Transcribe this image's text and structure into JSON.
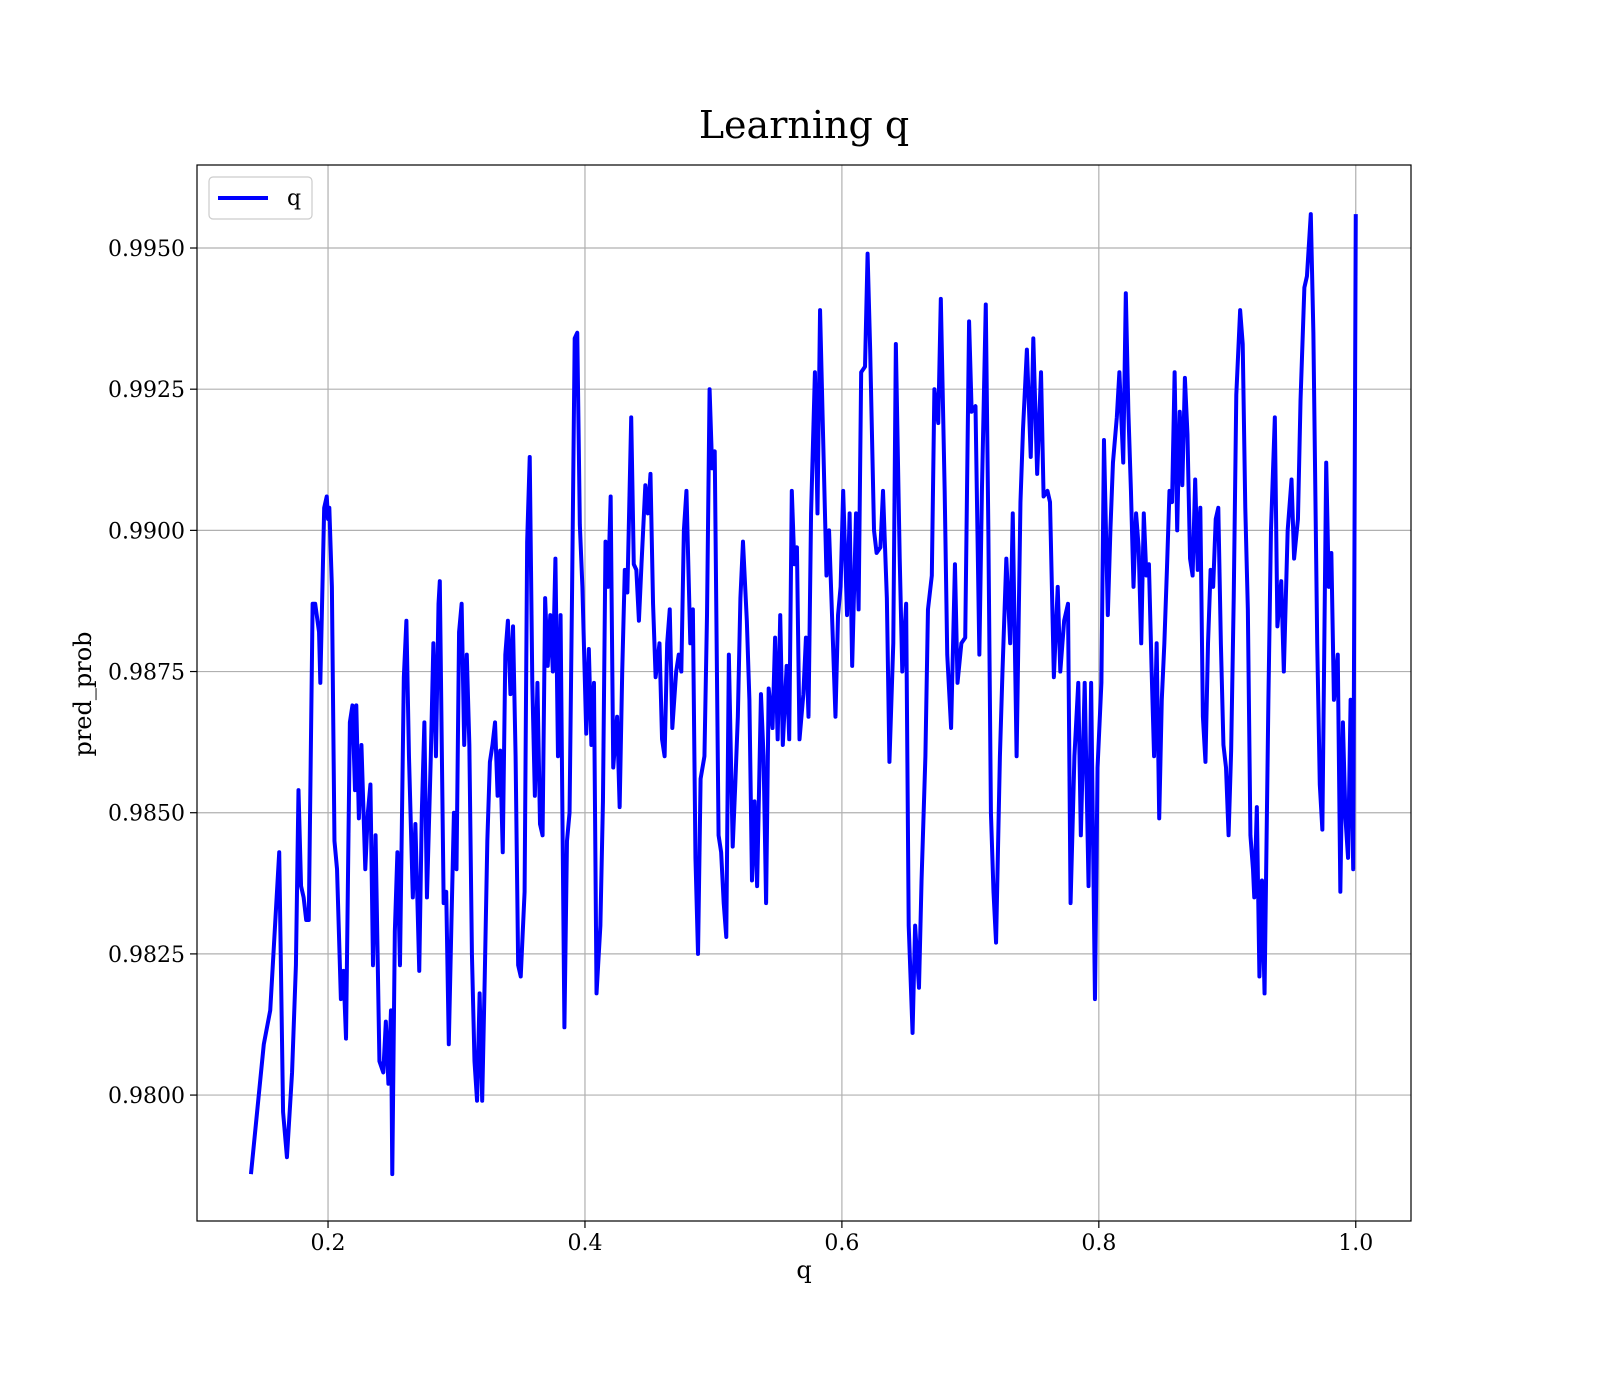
{
  "chart_data": {
    "type": "line",
    "title": "Learning q",
    "xlabel": "q",
    "ylabel": "pred_prob",
    "grid": true,
    "legend": "upper left",
    "xlim": [
      0.098,
      1.043
    ],
    "ylim": [
      0.97777,
      0.99647
    ],
    "xticks": [
      0.2,
      0.4,
      0.6,
      0.8,
      {
        "value": 1,
        "label": "1.0"
      }
    ],
    "yticks": [
      {
        "value": 0.98,
        "label": "0.9800"
      },
      0.9825,
      {
        "value": 0.985,
        "label": "0.9850"
      },
      0.9875,
      {
        "value": 0.99,
        "label": "0.9900"
      },
      0.9925,
      {
        "value": 0.995,
        "label": "0.9950"
      }
    ],
    "x": [
      0.14,
      0.15,
      0.155,
      0.16,
      0.162,
      0.165,
      0.168,
      0.172,
      0.175,
      0.177,
      0.179,
      0.181,
      0.183,
      0.185,
      0.188,
      0.19,
      0.193,
      0.194,
      0.197,
      0.199,
      0.2,
      0.201,
      0.203,
      0.205,
      0.207,
      0.21,
      0.212,
      0.214,
      0.217,
      0.219,
      0.221,
      0.222,
      0.224,
      0.226,
      0.229,
      0.231,
      0.233,
      0.235,
      0.237,
      0.24,
      0.243,
      0.245,
      0.247,
      0.249,
      0.25,
      0.252,
      0.254,
      0.256,
      0.259,
      0.261,
      0.263,
      0.266,
      0.268,
      0.271,
      0.273,
      0.275,
      0.277,
      0.28,
      0.282,
      0.284,
      0.286,
      0.287,
      0.29,
      0.292,
      0.294,
      0.296,
      0.298,
      0.3,
      0.302,
      0.304,
      0.306,
      0.308,
      0.31,
      0.312,
      0.314,
      0.316,
      0.318,
      0.32,
      0.322,
      0.324,
      0.326,
      0.328,
      0.33,
      0.332,
      0.334,
      0.336,
      0.338,
      0.34,
      0.342,
      0.344,
      0.346,
      0.348,
      0.35,
      0.353,
      0.355,
      0.357,
      0.359,
      0.361,
      0.363,
      0.365,
      0.367,
      0.369,
      0.371,
      0.373,
      0.375,
      0.377,
      0.379,
      0.381,
      0.384,
      0.386,
      0.388,
      0.39,
      0.392,
      0.394,
      0.396,
      0.398,
      0.401,
      0.403,
      0.405,
      0.407,
      0.409,
      0.412,
      0.414,
      0.416,
      0.418,
      0.42,
      0.422,
      0.425,
      0.427,
      0.429,
      0.431,
      0.433,
      0.436,
      0.438,
      0.44,
      0.442,
      0.444,
      0.447,
      0.449,
      0.451,
      0.453,
      0.455,
      0.458,
      0.46,
      0.462,
      0.464,
      0.466,
      0.468,
      0.471,
      0.473,
      0.475,
      0.477,
      0.479,
      0.482,
      0.484,
      0.486,
      0.488,
      0.49,
      0.493,
      0.495,
      0.497,
      0.499,
      0.501,
      0.504,
      0.506,
      0.508,
      0.51,
      0.512,
      0.515,
      0.517,
      0.519,
      0.521,
      0.523,
      0.526,
      0.528,
      0.53,
      0.532,
      0.534,
      0.537,
      0.539,
      0.541,
      0.543,
      0.546,
      0.548,
      0.55,
      0.552,
      0.554,
      0.557,
      0.559,
      0.561,
      0.563,
      0.565,
      0.567,
      0.57,
      0.572,
      0.574,
      0.576,
      0.579,
      0.581,
      0.583,
      0.585,
      0.588,
      0.59,
      0.592,
      0.595,
      0.597,
      0.599,
      0.601,
      0.604,
      0.606,
      0.608,
      0.611,
      0.613,
      0.615,
      0.618,
      0.62,
      0.622,
      0.625,
      0.627,
      0.63,
      0.632,
      0.635,
      0.637,
      0.64,
      0.642,
      0.645,
      0.647,
      0.65,
      0.652,
      0.655,
      0.657,
      0.66,
      0.662,
      0.665,
      0.667,
      0.67,
      0.672,
      0.675,
      0.677,
      0.68,
      0.682,
      0.685,
      0.688,
      0.69,
      0.693,
      0.696,
      0.699,
      0.701,
      0.704,
      0.707,
      0.709,
      0.712,
      0.714,
      0.716,
      0.718,
      0.72,
      0.723,
      0.725,
      0.728,
      0.731,
      0.733,
      0.736,
      0.739,
      0.741,
      0.744,
      0.747,
      0.749,
      0.752,
      0.755,
      0.757,
      0.76,
      0.762,
      0.765,
      0.768,
      0.77,
      0.773,
      0.776,
      0.778,
      0.781,
      0.784,
      0.786,
      0.789,
      0.792,
      0.794,
      0.797,
      0.799,
      0.802,
      0.804,
      0.807,
      0.809,
      0.811,
      0.814,
      0.816,
      0.819,
      0.821,
      0.823,
      0.825,
      0.827,
      0.829,
      0.831,
      0.833,
      0.835,
      0.837,
      0.839,
      0.841,
      0.843,
      0.845,
      0.847,
      0.849,
      0.851,
      0.853,
      0.855,
      0.857,
      0.859,
      0.861,
      0.863,
      0.865,
      0.867,
      0.869,
      0.871,
      0.873,
      0.875,
      0.877,
      0.879,
      0.881,
      0.883,
      0.885,
      0.887,
      0.889,
      0.891,
      0.893,
      0.895,
      0.897,
      0.899,
      0.901,
      0.903,
      0.905,
      0.907,
      0.91,
      0.912,
      0.914,
      0.916,
      0.918,
      0.92,
      0.921,
      0.923,
      0.925,
      0.927,
      0.929,
      0.932,
      0.934,
      0.937,
      0.939,
      0.942,
      0.944,
      0.947,
      0.95,
      0.952,
      0.955,
      0.957,
      0.96,
      0.962,
      0.965,
      0.967,
      0.97,
      0.972,
      0.974,
      0.977,
      0.979,
      0.981,
      0.983,
      0.986,
      0.988,
      0.99,
      0.992,
      0.994,
      0.996,
      0.998,
      1.0
    ],
    "series": [
      {
        "name": "q",
        "color": "#0000ff",
        "values": [
          0.9786,
          0.9809,
          0.9815,
          0.9835,
          0.9843,
          0.9797,
          0.9789,
          0.9804,
          0.9823,
          0.9854,
          0.9837,
          0.9835,
          0.9831,
          0.9831,
          0.9887,
          0.9887,
          0.9882,
          0.9873,
          0.9904,
          0.9906,
          0.9902,
          0.9904,
          0.989,
          0.9845,
          0.984,
          0.9817,
          0.9822,
          0.981,
          0.9866,
          0.9869,
          0.9854,
          0.9869,
          0.9849,
          0.9862,
          0.984,
          0.985,
          0.9855,
          0.9823,
          0.9846,
          0.9806,
          0.9804,
          0.9813,
          0.9802,
          0.9815,
          0.9786,
          0.9829,
          0.9843,
          0.9823,
          0.9874,
          0.9884,
          0.986,
          0.9835,
          0.9848,
          0.9822,
          0.985,
          0.9866,
          0.9835,
          0.986,
          0.988,
          0.986,
          0.9887,
          0.9891,
          0.9834,
          0.9836,
          0.9809,
          0.983,
          0.985,
          0.984,
          0.9882,
          0.9887,
          0.9862,
          0.9878,
          0.9862,
          0.9825,
          0.9806,
          0.9799,
          0.9818,
          0.9799,
          0.9821,
          0.9845,
          0.9859,
          0.9862,
          0.9866,
          0.9853,
          0.9861,
          0.9843,
          0.9878,
          0.9884,
          0.9871,
          0.9883,
          0.986,
          0.9823,
          0.9821,
          0.9836,
          0.9898,
          0.9913,
          0.9873,
          0.9853,
          0.9873,
          0.9848,
          0.9846,
          0.9888,
          0.9876,
          0.9885,
          0.9875,
          0.9895,
          0.986,
          0.9885,
          0.9812,
          0.9845,
          0.985,
          0.989,
          0.9934,
          0.9935,
          0.9901,
          0.989,
          0.9864,
          0.9879,
          0.9862,
          0.9873,
          0.9818,
          0.983,
          0.9852,
          0.9898,
          0.989,
          0.9906,
          0.9858,
          0.9867,
          0.9851,
          0.9875,
          0.9893,
          0.9889,
          0.992,
          0.9894,
          0.9893,
          0.9884,
          0.9894,
          0.9908,
          0.9903,
          0.991,
          0.9887,
          0.9874,
          0.988,
          0.9863,
          0.986,
          0.988,
          0.9886,
          0.9865,
          0.9875,
          0.9878,
          0.9875,
          0.99,
          0.9907,
          0.988,
          0.9886,
          0.9842,
          0.9825,
          0.9856,
          0.986,
          0.9885,
          0.9925,
          0.9911,
          0.9914,
          0.9846,
          0.9843,
          0.9834,
          0.9828,
          0.9878,
          0.9844,
          0.9855,
          0.9867,
          0.9888,
          0.9898,
          0.9884,
          0.987,
          0.9838,
          0.9852,
          0.9837,
          0.9871,
          0.986,
          0.9834,
          0.9872,
          0.9865,
          0.9881,
          0.9863,
          0.9885,
          0.9862,
          0.9876,
          0.9863,
          0.9907,
          0.9894,
          0.9897,
          0.9863,
          0.9871,
          0.9881,
          0.9867,
          0.9903,
          0.9928,
          0.9903,
          0.9939,
          0.992,
          0.9892,
          0.99,
          0.9887,
          0.9867,
          0.9885,
          0.989,
          0.9907,
          0.9885,
          0.9903,
          0.9876,
          0.9903,
          0.9886,
          0.9928,
          0.9929,
          0.9949,
          0.9932,
          0.99,
          0.9896,
          0.9897,
          0.9907,
          0.9888,
          0.9859,
          0.988,
          0.9933,
          0.9895,
          0.9875,
          0.9887,
          0.983,
          0.9811,
          0.983,
          0.9819,
          0.9838,
          0.986,
          0.9886,
          0.9892,
          0.9925,
          0.9919,
          0.9941,
          0.9907,
          0.9878,
          0.9865,
          0.9894,
          0.9873,
          0.988,
          0.9881,
          0.9937,
          0.9921,
          0.9922,
          0.9878,
          0.9907,
          0.994,
          0.99,
          0.985,
          0.9836,
          0.9827,
          0.986,
          0.9875,
          0.9895,
          0.988,
          0.9903,
          0.986,
          0.9905,
          0.9918,
          0.9932,
          0.9913,
          0.9934,
          0.991,
          0.9928,
          0.9906,
          0.9907,
          0.9905,
          0.9874,
          0.989,
          0.9875,
          0.9884,
          0.9887,
          0.9834,
          0.986,
          0.9873,
          0.9846,
          0.9873,
          0.9837,
          0.9873,
          0.9817,
          0.9858,
          0.9873,
          0.9916,
          0.9885,
          0.99,
          0.9912,
          0.992,
          0.9928,
          0.9912,
          0.9942,
          0.9921,
          0.9907,
          0.989,
          0.9903,
          0.9897,
          0.988,
          0.9903,
          0.9892,
          0.9894,
          0.9876,
          0.986,
          0.988,
          0.9849,
          0.987,
          0.988,
          0.9893,
          0.9907,
          0.9905,
          0.9928,
          0.99,
          0.9921,
          0.9908,
          0.9927,
          0.9917,
          0.9895,
          0.9892,
          0.9909,
          0.9893,
          0.9904,
          0.9867,
          0.9859,
          0.988,
          0.9893,
          0.989,
          0.9902,
          0.9904,
          0.988,
          0.9862,
          0.9858,
          0.9846,
          0.9861,
          0.9888,
          0.9924,
          0.9939,
          0.9933,
          0.9904,
          0.9886,
          0.9846,
          0.984,
          0.9835,
          0.9851,
          0.9821,
          0.9838,
          0.9818,
          0.987,
          0.99,
          0.992,
          0.9883,
          0.9891,
          0.9875,
          0.99,
          0.9909,
          0.9895,
          0.9902,
          0.9923,
          0.9943,
          0.9945,
          0.9956,
          0.9935,
          0.988,
          0.9855,
          0.9847,
          0.9912,
          0.989,
          0.9896,
          0.987,
          0.9878,
          0.9836,
          0.9866,
          0.9849,
          0.9842,
          0.987,
          0.984,
          0.9956
        ]
      }
    ]
  }
}
